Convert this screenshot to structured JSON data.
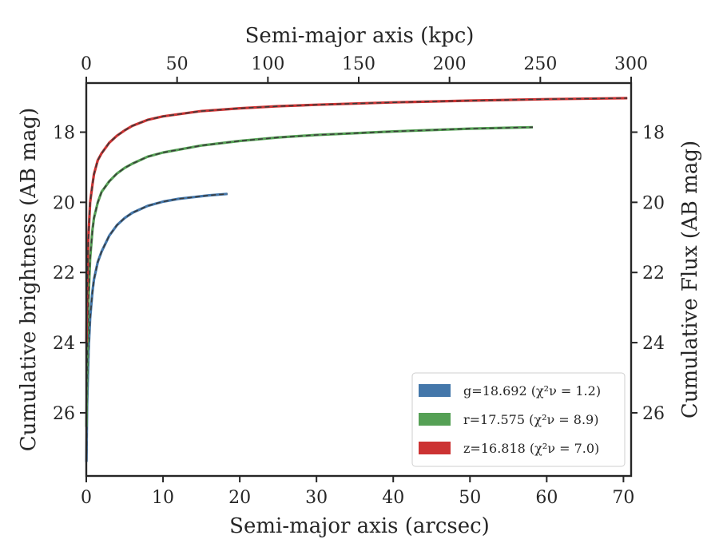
{
  "chart_data": {
    "type": "line",
    "xlabel": "Semi-major axis (arcsec)",
    "x2label": "Semi-major axis (kpc)",
    "ylabel": "Cumulative brightness (AB mag)",
    "y2label": "Cumulative Flux (AB mag)",
    "xlim": [
      0,
      71
    ],
    "x2lim": [
      0,
      300
    ],
    "ylim": [
      27.8,
      16.6
    ],
    "y_inverted": true,
    "xticks": [
      "0",
      "10",
      "20",
      "30",
      "40",
      "50",
      "60",
      "70"
    ],
    "x2ticks": [
      "0",
      "50",
      "100",
      "150",
      "200",
      "250",
      "300"
    ],
    "yticks": [
      "18",
      "20",
      "22",
      "24",
      "26"
    ],
    "legend_location": "lower-right",
    "grid": false,
    "series": [
      {
        "name": "g=18.692 (χ²ν = 1.2)",
        "color": "#4477aa",
        "fit_color": "#3a3a3a",
        "x": [
          0.02,
          0.1,
          0.3,
          0.5,
          0.8,
          1,
          1.5,
          2,
          3,
          4,
          5,
          6,
          8,
          10,
          12,
          14,
          16,
          18.4
        ],
        "y": [
          27.4,
          25.8,
          24.2,
          23.3,
          22.55,
          22.2,
          21.7,
          21.4,
          20.95,
          20.65,
          20.45,
          20.3,
          20.1,
          19.98,
          19.9,
          19.85,
          19.8,
          19.76
        ]
      },
      {
        "name": "r=17.575 (χ²ν = 8.9)",
        "color": "#55a055",
        "fit_color": "#3a3a3a",
        "x": [
          0.02,
          0.1,
          0.2,
          0.3,
          0.5,
          0.8,
          1,
          1.5,
          2,
          3,
          4,
          5,
          6,
          8,
          10,
          15,
          20,
          25,
          30,
          40,
          50,
          58.2
        ],
        "y": [
          26.4,
          24.8,
          23.5,
          22.7,
          21.6,
          20.8,
          20.45,
          20.0,
          19.7,
          19.4,
          19.18,
          19.02,
          18.9,
          18.7,
          18.58,
          18.38,
          18.25,
          18.15,
          18.08,
          17.98,
          17.9,
          17.86
        ]
      },
      {
        "name": "z=16.818 (χ²ν = 7.0)",
        "color": "#cc3333",
        "fit_color": "#3a3a3a",
        "x": [
          0.02,
          0.1,
          0.2,
          0.3,
          0.5,
          0.8,
          1,
          1.5,
          2,
          3,
          4,
          5,
          6,
          8,
          10,
          15,
          20,
          25,
          30,
          40,
          50,
          60,
          70.5
        ],
        "y": [
          24.0,
          22.5,
          21.5,
          20.9,
          20.0,
          19.5,
          19.2,
          18.8,
          18.6,
          18.3,
          18.1,
          17.95,
          17.82,
          17.65,
          17.55,
          17.4,
          17.32,
          17.26,
          17.22,
          17.15,
          17.1,
          17.06,
          17.03
        ]
      }
    ]
  }
}
